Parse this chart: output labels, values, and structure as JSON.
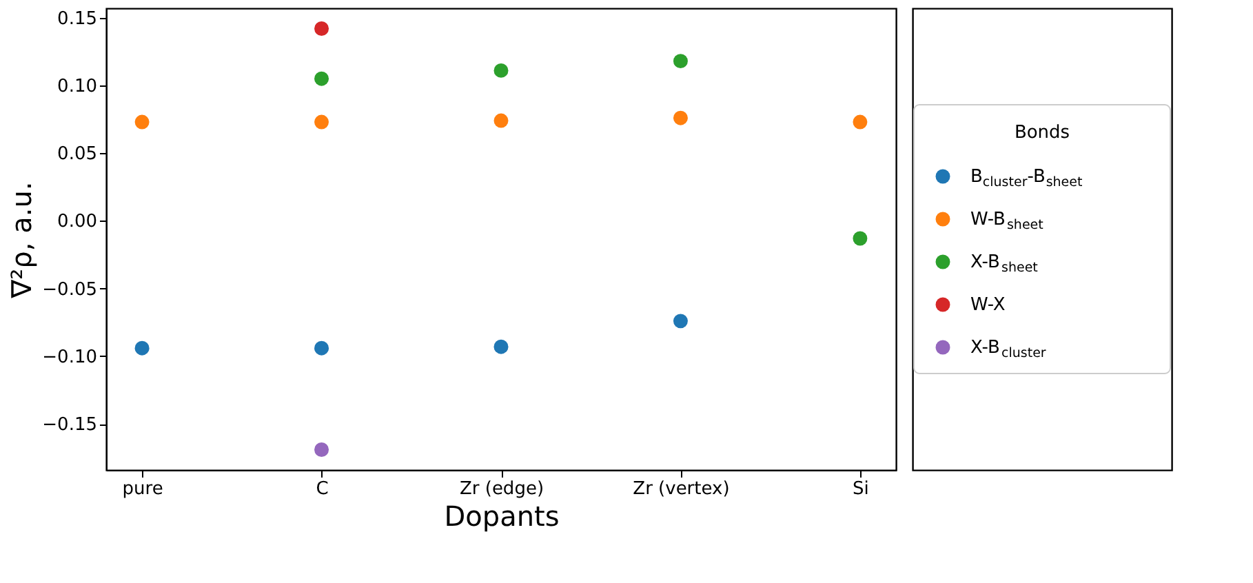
{
  "chart_data": {
    "type": "scatter",
    "xlabel": "Dopants",
    "ylabel": "∇²ρ, a.u.",
    "legend_title": "Bonds",
    "categories": [
      "pure",
      "C",
      "Zr (edge)",
      "Zr (vertex)",
      "Si"
    ],
    "series": [
      {
        "name": "B$_{cluster}$-B$_{sheet}$",
        "color": "#1f77b4",
        "values": [
          -0.094,
          -0.094,
          -0.093,
          -0.074,
          null
        ]
      },
      {
        "name": "W-B$_{sheet}$",
        "color": "#ff7f0e",
        "values": [
          0.073,
          0.073,
          0.074,
          0.076,
          0.073
        ]
      },
      {
        "name": "X-B$_{sheet}$",
        "color": "#2ca02c",
        "values": [
          null,
          0.105,
          0.111,
          0.118,
          -0.013
        ]
      },
      {
        "name": "W-X",
        "color": "#d62728",
        "values": [
          null,
          0.142,
          null,
          null,
          null
        ]
      },
      {
        "name": "X-B$_{cluster}$",
        "color": "#9467bd",
        "values": [
          null,
          -0.169,
          null,
          null,
          null
        ]
      }
    ],
    "ylim": [
      -0.184,
      0.157
    ],
    "yticks": [
      {
        "value": -0.15,
        "label": "−0.15"
      },
      {
        "value": -0.1,
        "label": "−0.10"
      },
      {
        "value": -0.05,
        "label": "−0.05"
      },
      {
        "value": 0.0,
        "label": "0.00"
      },
      {
        "value": 0.05,
        "label": "0.05"
      },
      {
        "value": 0.1,
        "label": "0.10"
      },
      {
        "value": 0.15,
        "label": "0.15"
      }
    ],
    "grid": false,
    "legend": "right",
    "marker": "circle"
  }
}
